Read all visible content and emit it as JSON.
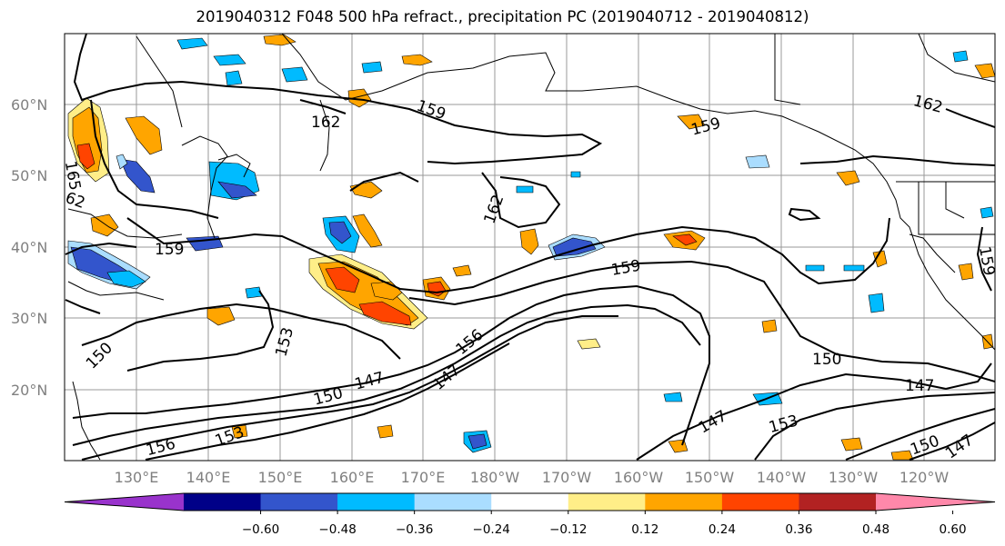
{
  "title": "2019040312 F048 500 hPa refract., precipitation PC (2019040712 - 2019040812)",
  "lat_labels": [
    "60°N",
    "50°N",
    "40°N",
    "30°N",
    "20°N"
  ],
  "lon_labels": [
    "130°E",
    "140°E",
    "150°E",
    "160°E",
    "170°E",
    "180°W",
    "170°W",
    "160°W",
    "150°W",
    "140°W",
    "130°W",
    "120°W"
  ],
  "colorbar": {
    "ticks": [
      "−0.60",
      "−0.48",
      "−0.36",
      "−0.24",
      "−0.12",
      "0.12",
      "0.24",
      "0.36",
      "0.48",
      "0.60"
    ],
    "colors": [
      "#9933cc",
      "#000088",
      "#3355cc",
      "#00bbff",
      "#aaddff",
      "#ffffff",
      "#ffee88",
      "#ffa500",
      "#ff4400",
      "#b22222",
      "#ff88aa"
    ]
  },
  "contour_labels": [
    "162",
    "159",
    "165",
    "62",
    "159",
    "162",
    "159",
    "153",
    "150",
    "150",
    "147",
    "147",
    "156",
    "147",
    "150",
    "147",
    "153",
    "150",
    "147",
    "159",
    "162",
    "156",
    "153",
    "159"
  ]
}
